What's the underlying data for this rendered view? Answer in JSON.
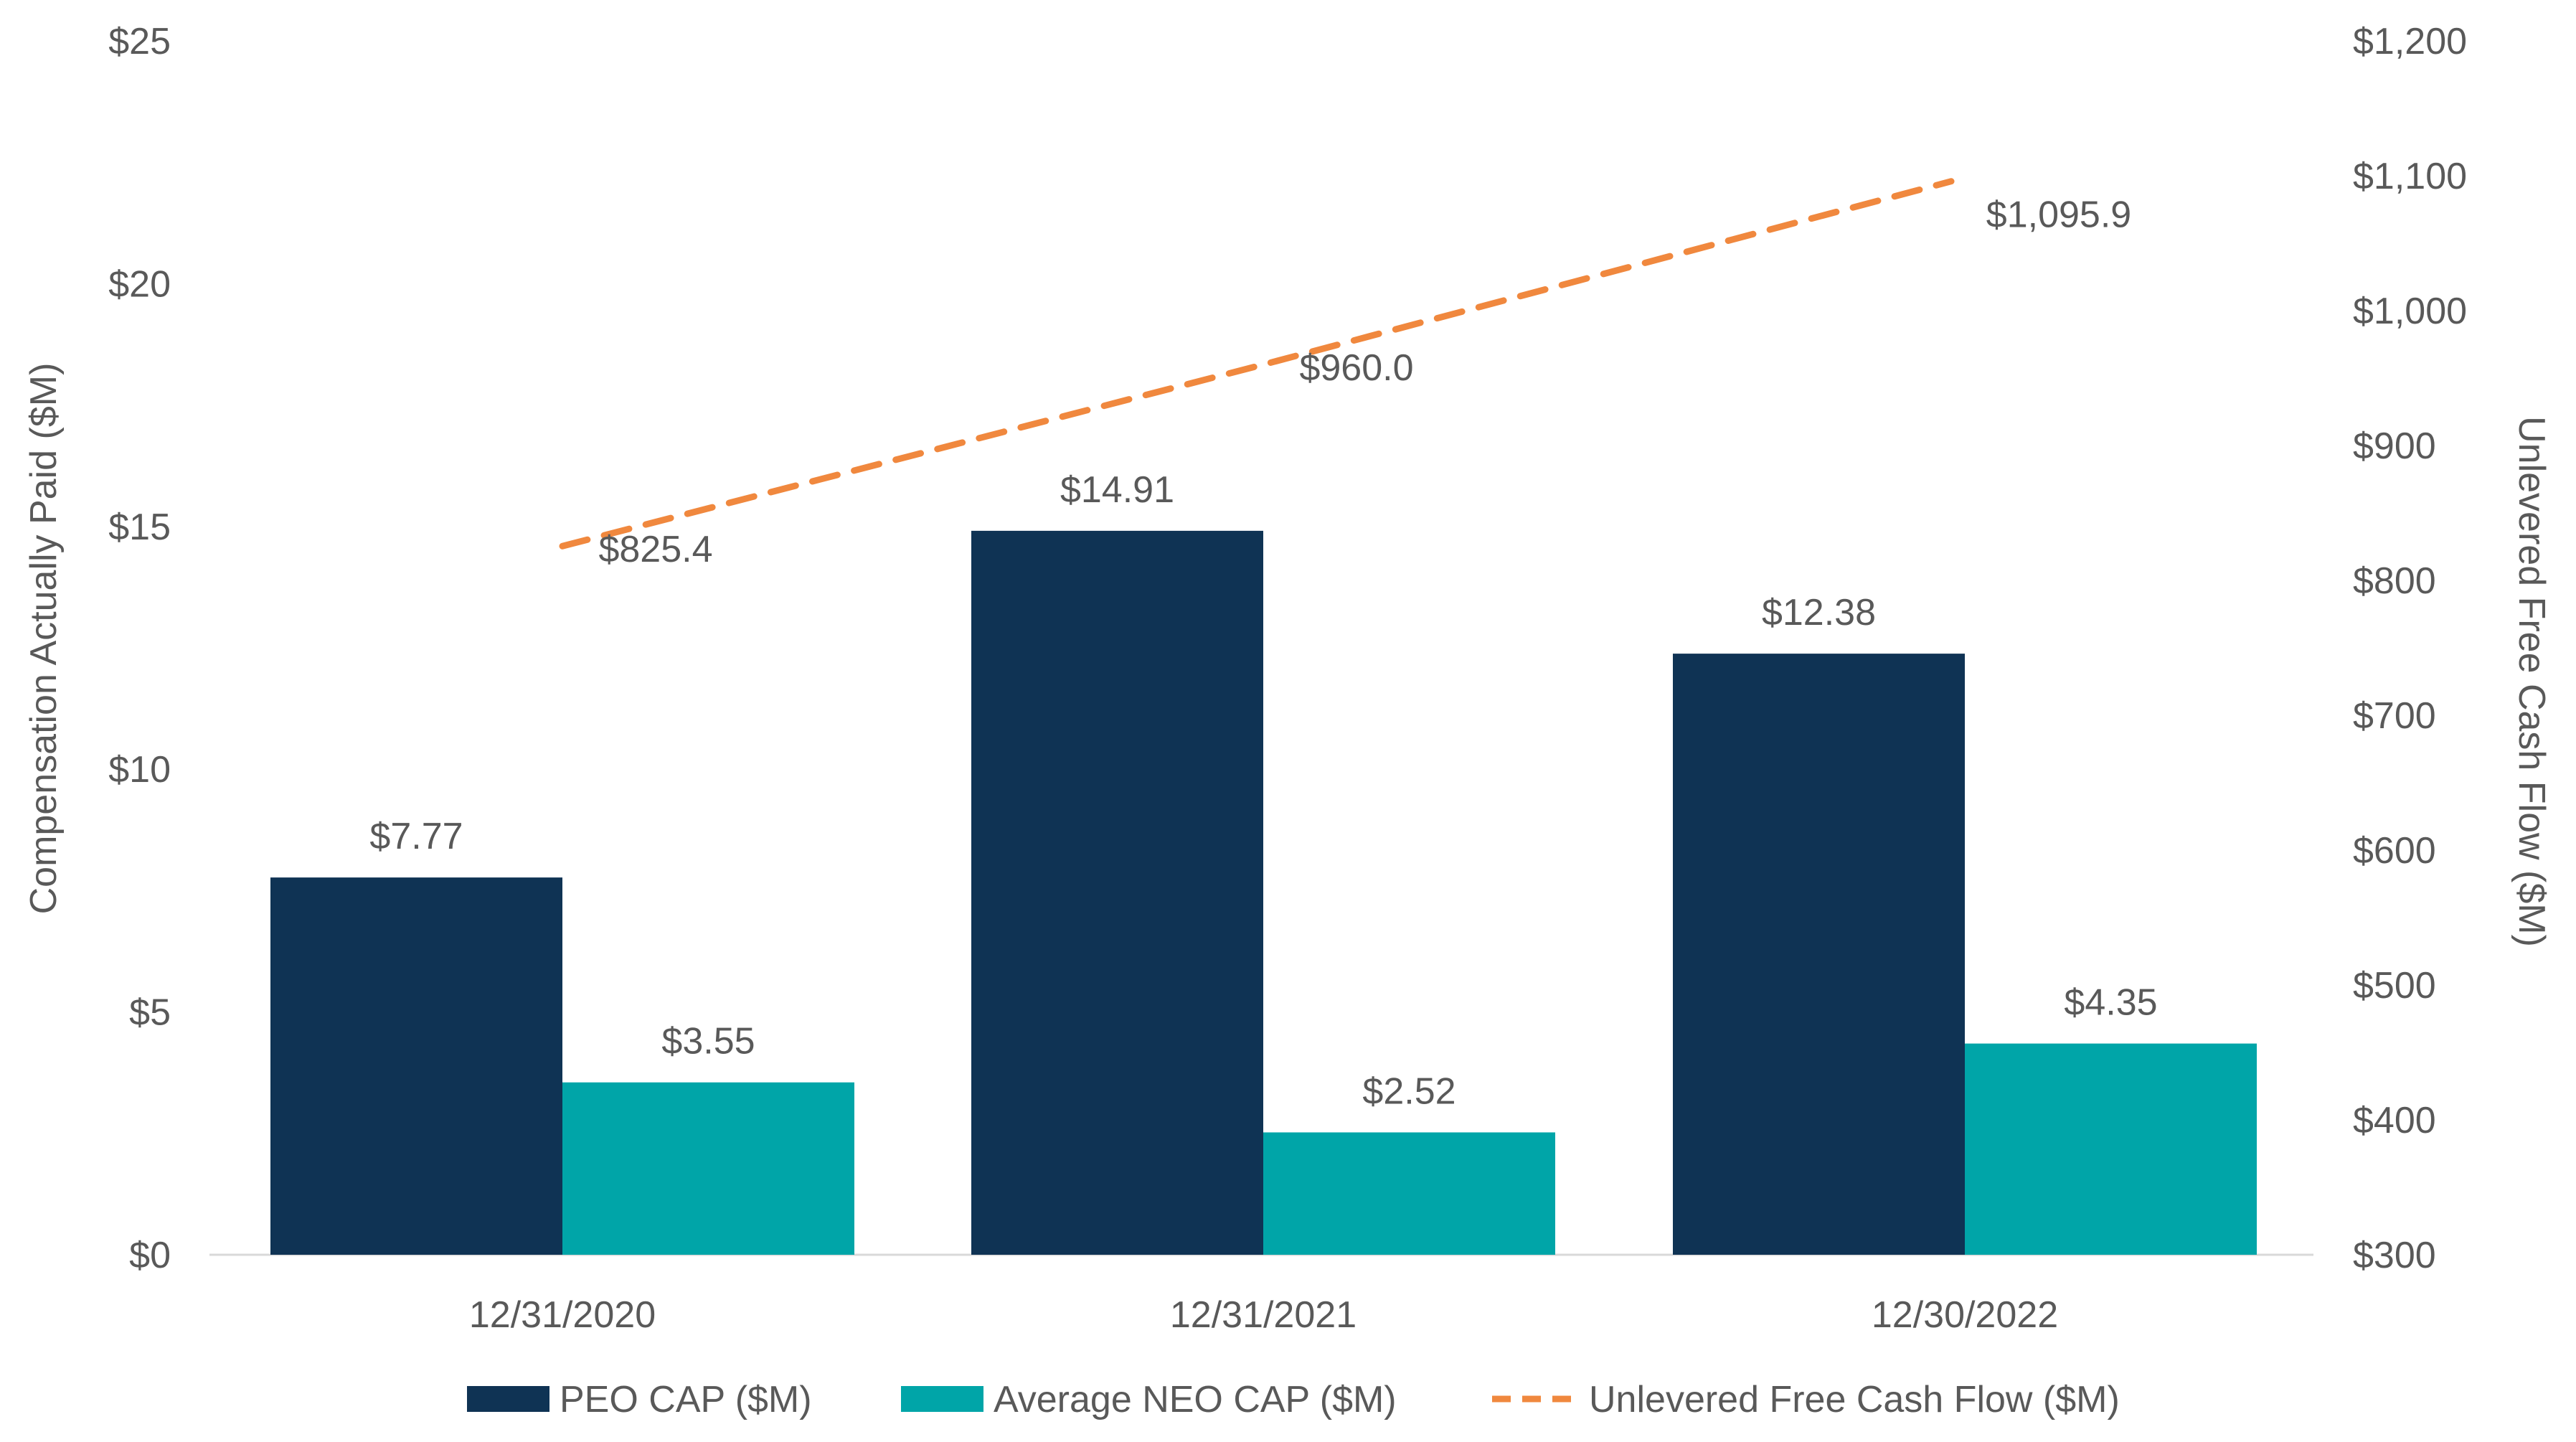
{
  "chart_data": {
    "type": "bar",
    "categories": [
      "12/31/2020",
      "12/31/2021",
      "12/30/2022"
    ],
    "series": [
      {
        "name": "PEO CAP ($M)",
        "type": "bar",
        "axis": "left",
        "color": "#0f3354",
        "values": [
          7.77,
          14.91,
          12.38
        ],
        "labels": [
          "$7.77",
          "$14.91",
          "$12.38"
        ]
      },
      {
        "name": "Average NEO CAP ($M)",
        "type": "bar",
        "axis": "left",
        "color": "#00a5a8",
        "values": [
          3.55,
          2.52,
          4.35
        ],
        "labels": [
          "$3.55",
          "$2.52",
          "$4.35"
        ]
      },
      {
        "name": "Unlevered Free Cash Flow ($M)",
        "type": "line",
        "style": "dashed",
        "axis": "right",
        "color": "#f0883e",
        "values": [
          825.4,
          960.0,
          1095.9
        ],
        "labels": [
          "$825.4",
          "$960.0",
          "$1,095.9"
        ]
      }
    ],
    "ylabel": "Compensation Actually Paid ($M)",
    "y2label": "Unlevered Free Cash Flow ($M)",
    "ylim": [
      0,
      25
    ],
    "y2lim": [
      300,
      1200
    ],
    "yticks": [
      0,
      5,
      10,
      15,
      20,
      25
    ],
    "ytick_labels": [
      "$0",
      "$5",
      "$10",
      "$15",
      "$20",
      "$25"
    ],
    "y2ticks": [
      300,
      400,
      500,
      600,
      700,
      800,
      900,
      1000,
      1100,
      1200
    ],
    "y2tick_labels": [
      "$300",
      "$400",
      "$500",
      "$600",
      "$700",
      "$800",
      "$900",
      "$1,000",
      "$1,100",
      "$1,200"
    ],
    "grid": false,
    "legend": "bottom"
  }
}
